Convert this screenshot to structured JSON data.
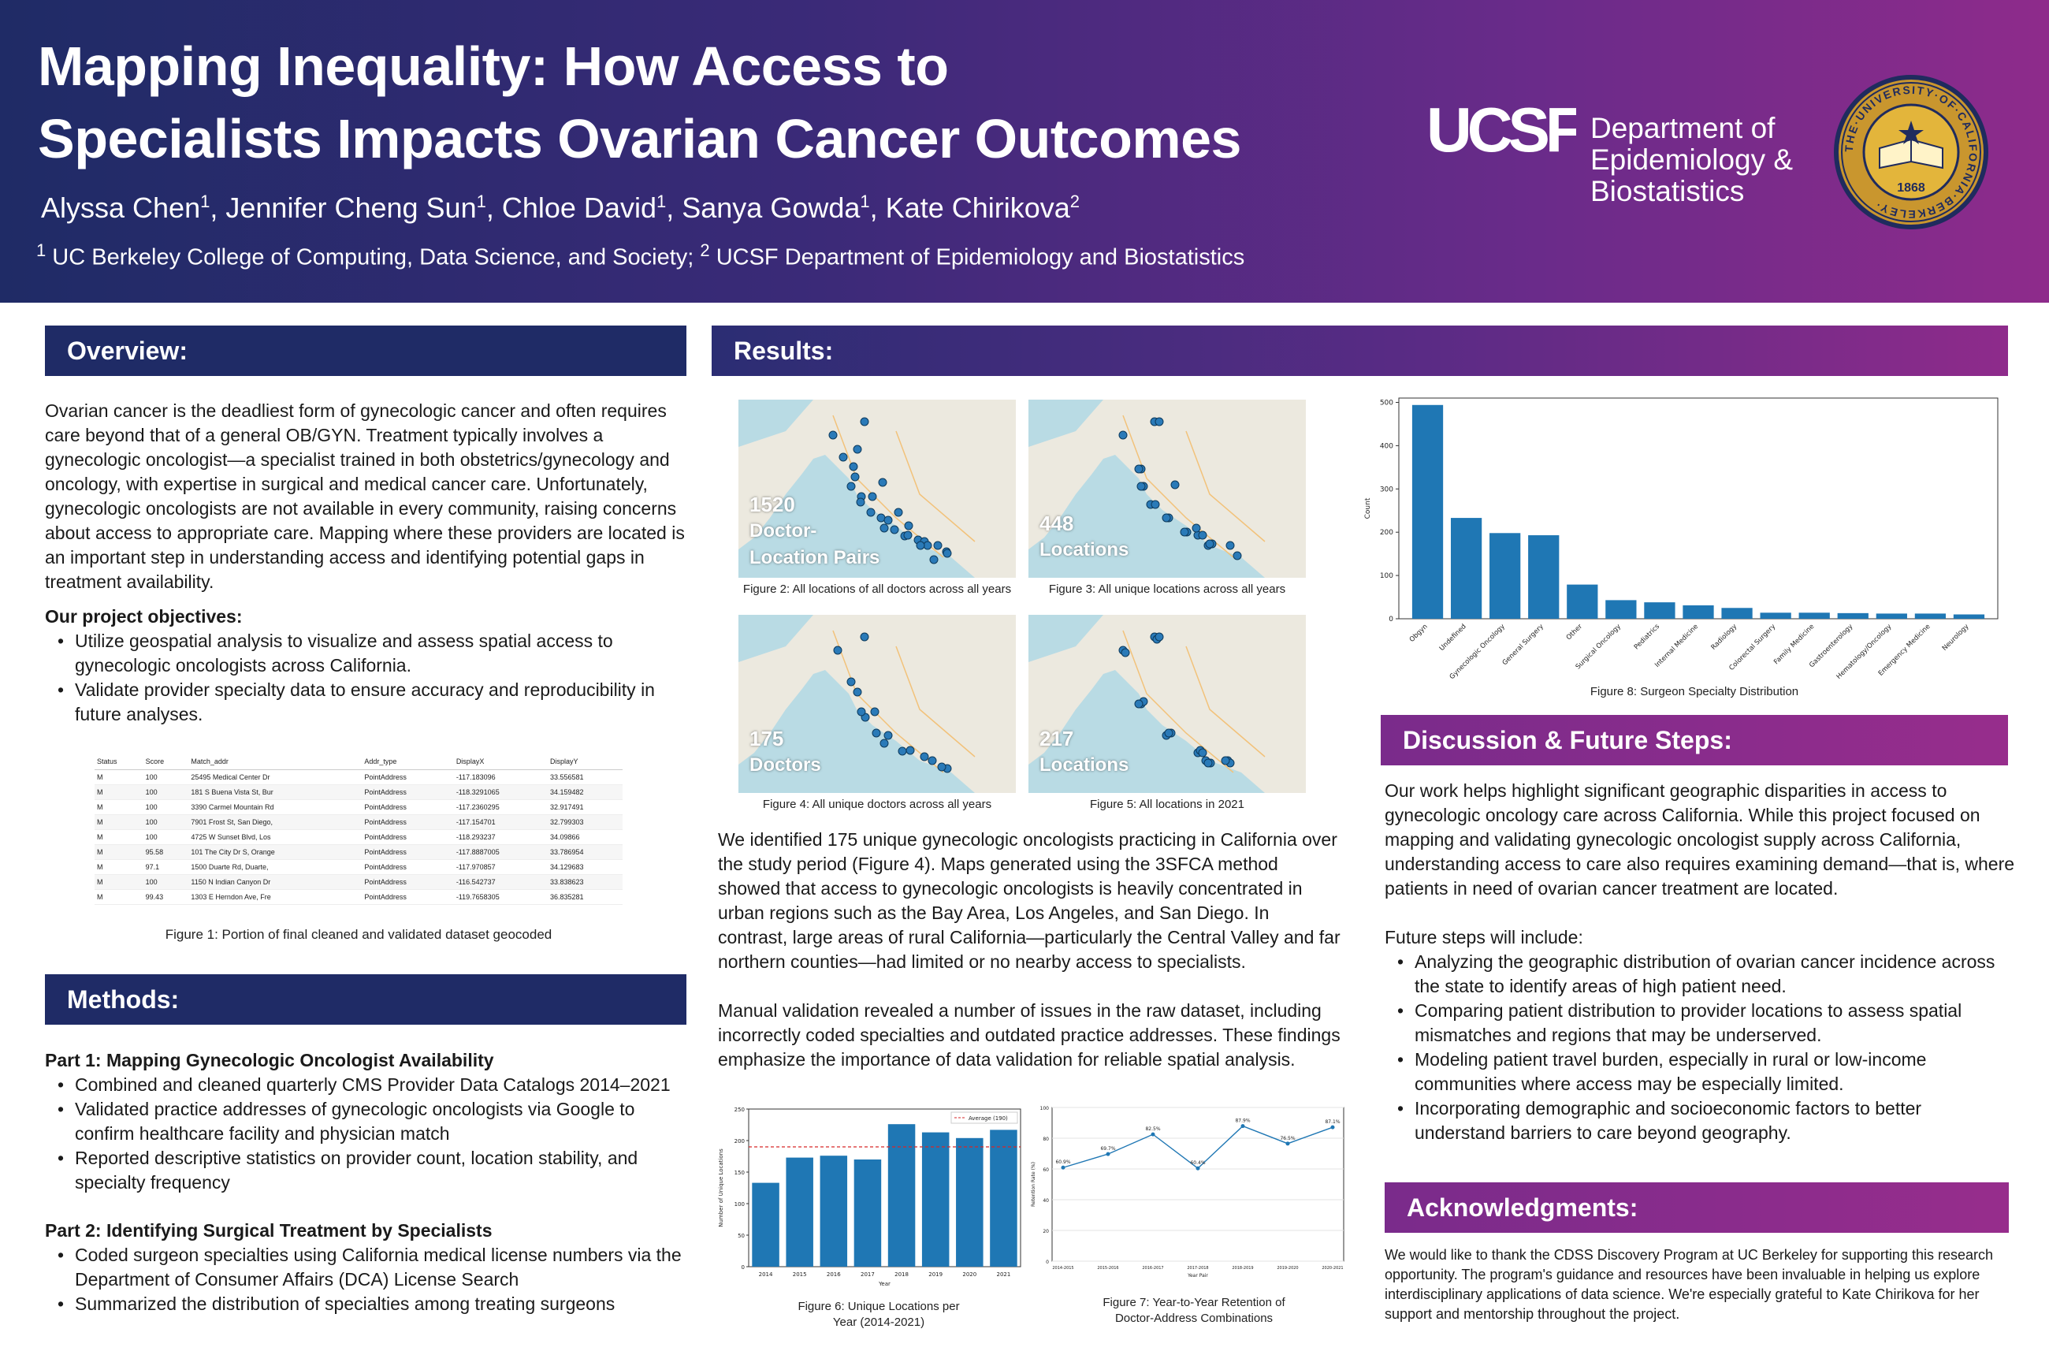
{
  "header": {
    "title_line1": "Mapping Inequality: How Access to",
    "title_line2": "Specialists Impacts Ovarian Cancer Outcomes",
    "authors": [
      {
        "name": "Alyssa Chen",
        "sup": "1"
      },
      {
        "name": "Jennifer Cheng Sun",
        "sup": "1"
      },
      {
        "name": "Chloe David",
        "sup": "1"
      },
      {
        "name": "Sanya Gowda",
        "sup": "1"
      },
      {
        "name": "Kate Chirikova",
        "sup": "2"
      }
    ],
    "affil_sup1": "1",
    "affil1": " UC Berkeley College of Computing, Data Science, and Society; ",
    "affil_sup2": "2",
    "affil2": " UCSF Department of Epidemiology and Biostatistics",
    "logo_ucsf": "UCSF",
    "dept_line1": "Department of",
    "dept_line2": "Epidemiology &",
    "dept_line3": "Biostatistics",
    "seal_text": "THE UNIVERSITY OF CALIFORNIA BERKELEY",
    "seal_year": "1868",
    "colors": {
      "navy": "#1f2b66",
      "purple": "#8e2b8b",
      "bar": "#1f77b4"
    }
  },
  "overview": {
    "heading": "Overview:",
    "paragraph": "Ovarian cancer is the deadliest form of gynecologic cancer and often requires care beyond that of a general OB/GYN. Treatment typically involves a gynecologic oncologist—a specialist trained in both obstetrics/gynecology and oncology, with expertise in surgical and medical cancer care. Unfortunately, gynecologic oncologists are not available in every community, raising concerns about access to appropriate care. Mapping where these providers are located is an important step in understanding access and identifying potential gaps in treatment availability.",
    "objectives_heading": "Our project objectives:",
    "objectives": [
      "Utilize geospatial analysis to visualize and assess spatial access to gynecologic oncologists across California.",
      "Validate provider specialty data to ensure accuracy and reproducibility in future analyses."
    ]
  },
  "table": {
    "headers": [
      "Status",
      "Score",
      "Match_addr",
      "Addr_type",
      "DisplayX",
      "DisplayY"
    ],
    "rows": [
      [
        "M",
        "100",
        "25495 Medical Center Dr",
        "PointAddress",
        "-117.183096",
        "33.556581"
      ],
      [
        "M",
        "100",
        "181 S Buena Vista St, Bur",
        "PointAddress",
        "-118.3291065",
        "34.159482"
      ],
      [
        "M",
        "100",
        "3390 Carmel Mountain Rd",
        "PointAddress",
        "-117.2360295",
        "32.917491"
      ],
      [
        "M",
        "100",
        "7901 Frost St, San Diego,",
        "PointAddress",
        "-117.154701",
        "32.799303"
      ],
      [
        "M",
        "100",
        "4725 W Sunset Blvd, Los",
        "PointAddress",
        "-118.293237",
        "34.09866"
      ],
      [
        "M",
        "95.58",
        "101 The City Dr S, Orange",
        "PointAddress",
        "-117.8887005",
        "33.786954"
      ],
      [
        "M",
        "97.1",
        "1500 Duarte Rd, Duarte,",
        "PointAddress",
        "-117.970857",
        "34.129683"
      ],
      [
        "M",
        "100",
        "1150 N Indian Canyon Dr",
        "PointAddress",
        "-116.542737",
        "33.838623"
      ],
      [
        "M",
        "99.43",
        "1303 E Herndon Ave, Fre",
        "PointAddress",
        "-119.7658305",
        "36.835281"
      ]
    ],
    "caption": "Figure 1: Portion of final cleaned and validated dataset geocoded"
  },
  "methods": {
    "heading": "Methods:",
    "part1_heading": "Part 1: Mapping Gynecologic Oncologist Availability",
    "part1": [
      "Combined and cleaned quarterly CMS Provider Data Catalogs 2014–2021",
      "Validated practice addresses of gynecologic oncologists via Google to confirm healthcare facility and physician match",
      "Reported descriptive statistics on provider count, location stability, and specialty frequency"
    ],
    "part2_heading": "Part 2: Identifying Surgical Treatment by Specialists",
    "part2": [
      "Coded surgeon specialties using California medical license numbers via the Department of Consumer Affairs (DCA) License Search",
      "Summarized the distribution of specialties among treating surgeons"
    ]
  },
  "results": {
    "heading": "Results:",
    "maps": [
      {
        "num": "1520",
        "label1": "Doctor-",
        "label2": "Location Pairs",
        "caption": "Figure 2: All locations of all doctors across all years"
      },
      {
        "num": "448",
        "label1": "",
        "label2": "Locations",
        "caption": "Figure 3: All unique locations across all years"
      },
      {
        "num": "175",
        "label1": "",
        "label2": "Doctors",
        "caption": "Figure 4: All unique doctors across all years"
      },
      {
        "num": "217",
        "label1": "",
        "label2": "Locations",
        "caption": "Figure 5: All locations in 2021"
      }
    ],
    "paragraph1": "We identified 175 unique gynecologic oncologists practicing in California over the study period (Figure 4). Maps generated using the 3SFCA method showed that access to gynecologic oncologists is heavily concentrated in urban regions such as the Bay Area, Los Angeles, and San Diego. In contrast, large areas of rural California—particularly the Central Valley and far northern counties—had limited or no nearby access to specialists.",
    "paragraph2": "Manual validation revealed a number of issues in the raw dataset, including incorrectly coded specialties and outdated practice addresses. These findings emphasize the importance of data validation for reliable spatial analysis.",
    "fig6_caption_line1": "Figure 6: Unique Locations per",
    "fig6_caption_line2": "Year (2014-2021)",
    "fig7_caption_line1": "Figure 7: Year-to-Year Retention of",
    "fig7_caption_line2": "Doctor-Address Combinations",
    "fig8_caption": "Figure 8: Surgeon  Specialty Distribution"
  },
  "discussion": {
    "heading": "Discussion & Future Steps:",
    "paragraph": "Our work helps highlight significant geographic disparities in access to gynecologic oncology care across California. While this project focused on mapping and validating gynecologic oncologist supply across California, understanding access to care also requires examining demand—that is, where patients in need of ovarian cancer treatment are located.",
    "future_heading": "Future steps will include:",
    "future": [
      "Analyzing the geographic distribution of ovarian cancer incidence across the state to identify areas of high patient need.",
      "Comparing patient distribution to provider locations to assess spatial mismatches and regions that may be underserved.",
      "Modeling patient travel burden, especially in rural or low-income communities where access may be especially limited.",
      "Incorporating demographic and socioeconomic factors to better understand barriers to care beyond geography."
    ]
  },
  "acknowledgments": {
    "heading": "Acknowledgments:",
    "paragraph": "We would like to thank the CDSS Discovery Program at UC Berkeley for supporting this research opportunity. The program's guidance and resources have been invaluable in helping us explore interdisciplinary applications of data science. We're especially grateful to Kate Chirikova for her support and mentorship throughout the project."
  },
  "chart_data": [
    {
      "id": "fig6",
      "type": "bar",
      "categories": [
        "2014",
        "2015",
        "2016",
        "2017",
        "2018",
        "2019",
        "2020",
        "2021"
      ],
      "values": [
        133,
        173,
        176,
        170,
        226,
        213,
        204,
        217
      ],
      "reference_line": {
        "value": 190,
        "label": "Average (190)",
        "color": "#d62728"
      },
      "xlabel": "Year",
      "ylabel": "Number of Unique Locations",
      "ylim": [
        0,
        250
      ],
      "yticks": [
        0,
        50,
        100,
        150,
        200,
        250
      ],
      "legend": "top-right",
      "grid": false
    },
    {
      "id": "fig7",
      "type": "line",
      "categories": [
        "2014-2015",
        "2015-2016",
        "2016-2017",
        "2017-2018",
        "2018-2019",
        "2019-2020",
        "2020-2021"
      ],
      "values": [
        60.9,
        69.7,
        82.5,
        60.4,
        87.9,
        76.5,
        87.1
      ],
      "point_labels": [
        "60.9%",
        "69.7%",
        "82.5%",
        "60.4%",
        "87.9%",
        "76.5%",
        "87.1%"
      ],
      "xlabel": "Year Pair",
      "ylabel": "Retention Rate (%)",
      "ylim": [
        0,
        100
      ],
      "yticks": [
        0,
        20,
        40,
        60,
        80,
        100
      ],
      "grid": true
    },
    {
      "id": "fig8",
      "type": "bar",
      "categories": [
        "Obgyn",
        "Undefined",
        "Gynecologic Oncology",
        "General Surgery",
        "Other",
        "Surgical Oncology",
        "Pediatrics",
        "Internal Medicine",
        "Radiology",
        "Colorectal Surgery",
        "Family Medicine",
        "Gastroenterology",
        "Hematology/Oncology",
        "Emergency Medicine",
        "Neurology"
      ],
      "values": [
        494,
        233,
        198,
        193,
        79,
        43,
        38,
        31,
        25,
        14,
        14,
        13,
        12,
        12,
        10
      ],
      "xlabel": "",
      "ylabel": "Count",
      "ylim": [
        0,
        510
      ],
      "yticks": [
        0,
        100,
        200,
        300,
        400,
        500
      ],
      "grid": false
    }
  ]
}
